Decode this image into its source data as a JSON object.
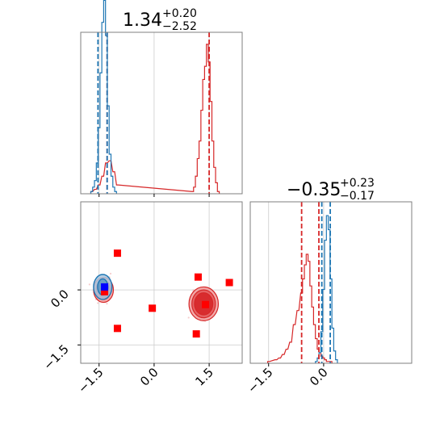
{
  "chart_data": {
    "type": "corner",
    "titles": {
      "x": {
        "median": "1.34",
        "plus": "+0.20",
        "minus": "−2.52"
      },
      "y": {
        "median": "−0.35",
        "plus": "+0.23",
        "minus": "−0.17"
      }
    },
    "axes": {
      "x": {
        "range": [
          -2.0,
          2.4
        ],
        "ticks": [
          -1.5,
          0.0,
          1.5
        ],
        "tick_labels": [
          "−1.5",
          "0.0",
          "1.5"
        ]
      },
      "y": {
        "range": [
          -2.0,
          2.4
        ],
        "ticks": [
          -1.5,
          0.0
        ],
        "tick_labels": [
          "−1.5",
          "0.0"
        ]
      },
      "grid": true
    },
    "colors": {
      "blue": "#1f77b4",
      "red": "#d62728",
      "marker_red": "#ff0000",
      "marker_blue": "#0000ff"
    },
    "series": [
      {
        "color": "blue",
        "x_quantiles": [
          -1.53,
          -1.28
        ],
        "y_quantiles": [
          -0.05,
          0.18
        ],
        "x_hist": {
          "bins": [
            -1.7,
            -1.65,
            -1.6,
            -1.55,
            -1.5,
            -1.45,
            -1.4,
            -1.35,
            -1.3,
            -1.25,
            -1.2,
            -1.15,
            -1.1,
            -1.05
          ],
          "counts": [
            1,
            3,
            6,
            14,
            30,
            55,
            78,
            88,
            72,
            40,
            18,
            8,
            3,
            1
          ]
        },
        "y_hist": {
          "bins": [
            -0.2,
            -0.15,
            -0.1,
            -0.05,
            0.0,
            0.05,
            0.1,
            0.15,
            0.2,
            0.25,
            0.3,
            0.35
          ],
          "counts": [
            1,
            3,
            6,
            18,
            42,
            70,
            84,
            76,
            48,
            20,
            7,
            2
          ]
        },
        "contour_center": [
          -1.4,
          0.08
        ],
        "contour_radii": [
          [
            0.14,
            0.22
          ],
          [
            0.25,
            0.34
          ]
        ]
      },
      {
        "color": "red",
        "x_quantiles": [
          -1.28,
          1.5
        ],
        "y_quantiles": [
          -0.6,
          -0.13
        ],
        "x_hist": {
          "bins": [
            -1.7,
            -1.6,
            -1.5,
            -1.4,
            -1.3,
            -1.2,
            -1.1,
            -1.0,
            1.05,
            1.1,
            1.15,
            1.2,
            1.25,
            1.3,
            1.35,
            1.4,
            1.45,
            1.5,
            1.55,
            1.6,
            1.65,
            1.7,
            1.75
          ],
          "counts": [
            1,
            2,
            4,
            8,
            14,
            15,
            10,
            4,
            1,
            3,
            8,
            16,
            24,
            38,
            52,
            58,
            68,
            60,
            42,
            24,
            12,
            5,
            1
          ]
        },
        "y_hist": {
          "bins": [
            -1.5,
            -1.3,
            -1.2,
            -1.1,
            -1.0,
            -0.9,
            -0.8,
            -0.7,
            -0.6,
            -0.55,
            -0.5,
            -0.45,
            -0.4,
            -0.35,
            -0.3,
            -0.25,
            -0.2,
            -0.15,
            -0.1,
            -0.05,
            0.0,
            0.05,
            0.1,
            0.2
          ],
          "counts": [
            1,
            2,
            3,
            5,
            8,
            12,
            22,
            30,
            40,
            48,
            56,
            62,
            58,
            44,
            32,
            22,
            14,
            8,
            6,
            4,
            3,
            2,
            1,
            1
          ]
        },
        "contours": [
          {
            "center": [
              1.35,
              -0.38
            ],
            "radii": [
              [
                0.25,
                0.3
              ],
              [
                0.32,
                0.38
              ],
              [
                0.4,
                0.46
              ]
            ]
          },
          {
            "center": [
              -1.38,
              0.0
            ],
            "radii": [
              [
                0.15,
                0.2
              ],
              [
                0.2,
                0.26
              ],
              [
                0.27,
                0.34
              ]
            ]
          }
        ]
      }
    ],
    "markers": {
      "red": [
        [
          -1.0,
          1.0
        ],
        [
          1.2,
          0.35
        ],
        [
          2.05,
          0.2
        ],
        [
          -1.35,
          -0.05
        ],
        [
          -0.05,
          -0.5
        ],
        [
          1.4,
          -0.4
        ],
        [
          -1.0,
          -1.05
        ],
        [
          1.15,
          -1.2
        ]
      ],
      "blue": [
        [
          -1.35,
          0.08
        ]
      ]
    }
  }
}
